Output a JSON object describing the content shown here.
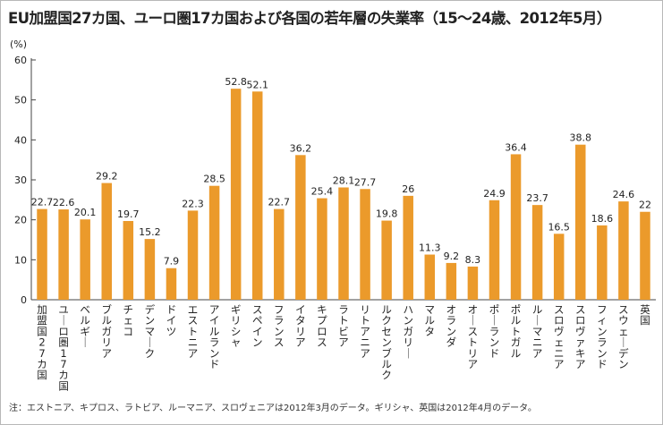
{
  "chart_data": {
    "type": "bar",
    "title": "EU加盟国27カ国、ユーロ圏17カ国および各国の若年層の失業率（15～24歳、2012年5月）",
    "ylabel": "(%)",
    "xlabel": "",
    "ylim": [
      0,
      60
    ],
    "yticks": [
      0,
      10,
      20,
      30,
      40,
      50,
      60
    ],
    "grid": false,
    "categories": [
      "加盟国27カ国",
      "ユーロ圏17カ国",
      "ベルギー",
      "ブルガリア",
      "チェコ",
      "デンマーク",
      "ドイツ",
      "エストニア",
      "アイルランド",
      "ギリシャ",
      "スペイン",
      "フランス",
      "イタリア",
      "キプロス",
      "ラトビア",
      "リトアニア",
      "ルクセンブルク",
      "ハンガリー",
      "マルタ",
      "オランダ",
      "オーストリア",
      "ポーランド",
      "ポルトガル",
      "ルーマニア",
      "スロヴェニア",
      "スロヴァキア",
      "フィンランド",
      "スウェーデン",
      "英国"
    ],
    "values": [
      22.7,
      22.6,
      20.1,
      29.2,
      19.7,
      15.2,
      7.9,
      22.3,
      28.5,
      52.8,
      52.1,
      22.7,
      36.2,
      25.4,
      28.1,
      27.7,
      19.8,
      26,
      11.3,
      9.2,
      8.3,
      24.9,
      36.4,
      23.7,
      16.5,
      38.8,
      18.6,
      24.6,
      22
    ],
    "bar_color": "#eb9a2b",
    "footnote": "注：エストニア、キプロス、ラトビア、ルーマニア、スロヴェニアは2012年3月のデータ。ギリシャ、英国は2012年4月のデータ。"
  }
}
